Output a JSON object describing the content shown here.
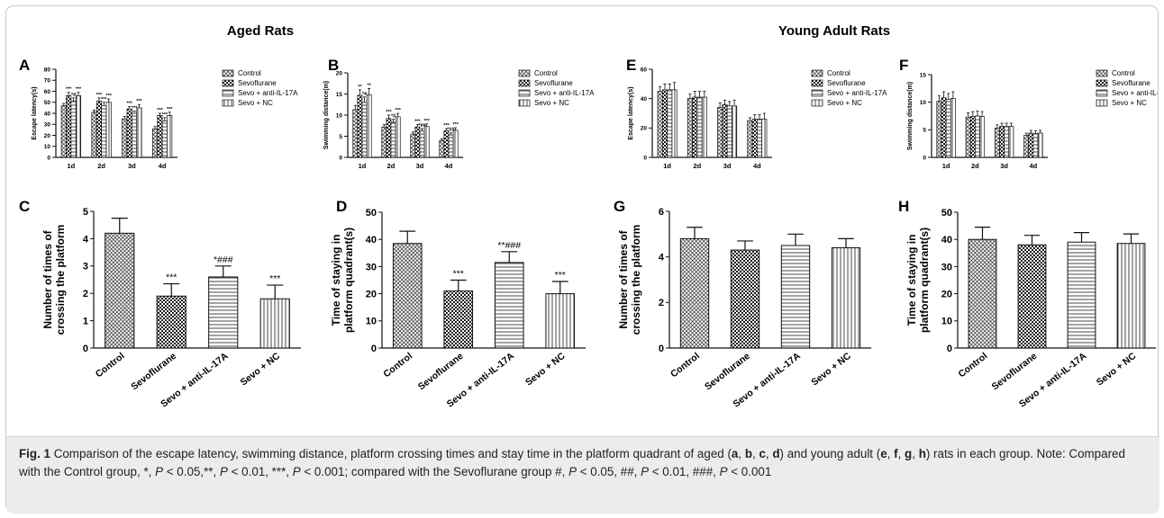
{
  "headers": {
    "aged": "Aged Rats",
    "young": "Young Adult Rats"
  },
  "legend": [
    "Control",
    "Sevoflurane",
    "Sevo + anti-IL-17A",
    "Sevo + NC"
  ],
  "colors": {
    "text": "#111111",
    "frame": "#c9c9c9",
    "caption_bg": "#ececec"
  },
  "chart_data": [
    {
      "panel": "A",
      "type": "bar",
      "ylabel": "Escape latency(s)",
      "categories": [
        "1d",
        "2d",
        "3d",
        "4d"
      ],
      "ylim": [
        0,
        80
      ],
      "yticks": [
        0,
        10,
        20,
        30,
        40,
        50,
        60,
        70,
        80
      ],
      "series": [
        {
          "name": "Control",
          "values": [
            47,
            41,
            35,
            26
          ],
          "errors": [
            2,
            2,
            2,
            2
          ]
        },
        {
          "name": "Sevoflurane",
          "values": [
            56,
            51,
            44,
            38
          ],
          "errors": [
            3,
            3,
            2,
            2
          ]
        },
        {
          "name": "Sevo + anti-IL-17A",
          "values": [
            51,
            47,
            40,
            33
          ],
          "errors": [
            3,
            3,
            2,
            3
          ]
        },
        {
          "name": "Sevo + NC",
          "values": [
            56,
            50,
            45,
            38
          ],
          "errors": [
            3,
            3,
            3,
            3
          ]
        }
      ],
      "annotations": [
        [
          "",
          "***",
          "*#",
          "***"
        ],
        [
          "",
          "***",
          "***",
          "***"
        ],
        [
          "",
          "***",
          "***",
          "***"
        ],
        [
          "",
          "***",
          "***",
          "***"
        ]
      ]
    },
    {
      "panel": "B",
      "type": "bar",
      "ylabel": "Swimming distance(m)",
      "categories": [
        "1d",
        "2d",
        "3d",
        "4d"
      ],
      "ylim": [
        0,
        20
      ],
      "yticks": [
        0,
        5,
        10,
        15,
        20
      ],
      "series": [
        {
          "name": "Control",
          "values": [
            11.3,
            7.2,
            5.5,
            4.0
          ],
          "errors": [
            1.0,
            0.6,
            0.5,
            0.4
          ]
        },
        {
          "name": "Sevoflurane",
          "values": [
            14.7,
            9.2,
            7.2,
            6.3
          ],
          "errors": [
            1.3,
            0.8,
            0.6,
            0.5
          ]
        },
        {
          "name": "Sevo + anti-IL-17A",
          "values": [
            13.0,
            8.3,
            6.2,
            5.3
          ],
          "errors": [
            1.3,
            0.7,
            0.6,
            0.5
          ]
        },
        {
          "name": "Sevo + NC",
          "values": [
            14.8,
            9.6,
            7.3,
            6.4
          ],
          "errors": [
            1.5,
            0.8,
            0.6,
            0.6
          ]
        }
      ],
      "annotations": [
        [
          "",
          "**",
          "*#",
          "**"
        ],
        [
          "",
          "***",
          "*#",
          "***"
        ],
        [
          "",
          "***",
          "*##",
          "***"
        ],
        [
          "",
          "***",
          "*##",
          "***"
        ]
      ]
    },
    {
      "panel": "E",
      "type": "bar",
      "ylabel": "Escape latency(s)",
      "categories": [
        "1d",
        "2d",
        "3d",
        "4d"
      ],
      "ylim": [
        0,
        60
      ],
      "yticks": [
        0,
        20,
        40,
        60
      ],
      "series": [
        {
          "name": "Control",
          "values": [
            45,
            40,
            34,
            25
          ],
          "errors": [
            3,
            3,
            3,
            2
          ]
        },
        {
          "name": "Sevoflurane",
          "values": [
            46,
            41,
            36,
            26
          ],
          "errors": [
            4,
            4,
            3,
            3
          ]
        },
        {
          "name": "Sevo + anti-IL-17A",
          "values": [
            46,
            41,
            35,
            26
          ],
          "errors": [
            4,
            4,
            3,
            3
          ]
        },
        {
          "name": "Sevo + NC",
          "values": [
            46,
            41,
            35,
            26
          ],
          "errors": [
            5,
            4,
            4,
            4
          ]
        }
      ],
      "annotations": []
    },
    {
      "panel": "F",
      "type": "bar",
      "ylabel": "Swimming distance(m)",
      "categories": [
        "1d",
        "2d",
        "3d",
        "4d"
      ],
      "ylim": [
        0,
        15
      ],
      "yticks": [
        0,
        5,
        10,
        15
      ],
      "series": [
        {
          "name": "Control",
          "values": [
            10.2,
            7.3,
            5.3,
            4.0
          ],
          "errors": [
            1.0,
            0.8,
            0.6,
            0.4
          ]
        },
        {
          "name": "Sevoflurane",
          "values": [
            10.8,
            7.4,
            5.6,
            4.4
          ],
          "errors": [
            1.1,
            0.9,
            0.6,
            0.5
          ]
        },
        {
          "name": "Sevo + anti-IL-17A",
          "values": [
            10.5,
            7.5,
            5.6,
            4.3
          ],
          "errors": [
            1.1,
            0.9,
            0.6,
            0.5
          ]
        },
        {
          "name": "Sevo + NC",
          "values": [
            10.7,
            7.4,
            5.6,
            4.4
          ],
          "errors": [
            1.2,
            0.9,
            0.6,
            0.5
          ]
        }
      ],
      "annotations": []
    },
    {
      "panel": "C",
      "type": "bar",
      "ylabel": "Number of times of crossing the platform",
      "categories": [
        "Control",
        "Sevoflurane",
        "Sevo + anti-IL-17A",
        "Sevo + NC"
      ],
      "ylim": [
        0,
        5
      ],
      "yticks": [
        0,
        1,
        2,
        3,
        4,
        5
      ],
      "values": [
        4.2,
        1.9,
        2.6,
        1.8
      ],
      "errors": [
        0.55,
        0.45,
        0.4,
        0.5
      ],
      "annotations": [
        "",
        "***",
        "*###",
        "***"
      ]
    },
    {
      "panel": "D",
      "type": "bar",
      "ylabel": "Time of staying in platform quadrant(s)",
      "categories": [
        "Control",
        "Sevoflurane",
        "Sevo + anti-IL-17A",
        "Sevo + NC"
      ],
      "ylim": [
        0,
        50
      ],
      "yticks": [
        0,
        10,
        20,
        30,
        40,
        50
      ],
      "values": [
        38.5,
        21,
        31.5,
        20
      ],
      "errors": [
        4.5,
        4,
        4,
        4.5
      ],
      "annotations": [
        "",
        "***",
        "**###",
        "***"
      ]
    },
    {
      "panel": "G",
      "type": "bar",
      "ylabel": "Number of times of crossing the platform",
      "categories": [
        "Control",
        "Sevoflurane",
        "Sevo + anti-IL-17A",
        "Sevo + NC"
      ],
      "ylim": [
        0,
        6
      ],
      "yticks": [
        0,
        2,
        4,
        6
      ],
      "values": [
        4.8,
        4.3,
        4.5,
        4.4
      ],
      "errors": [
        0.5,
        0.4,
        0.5,
        0.4
      ],
      "annotations": []
    },
    {
      "panel": "H",
      "type": "bar",
      "ylabel": "Time of staying in platform quadrant(s)",
      "categories": [
        "Control",
        "Sevoflurane",
        "Sevo + anti-IL-17A",
        "Sevo + NC"
      ],
      "ylim": [
        0,
        50
      ],
      "yticks": [
        0,
        10,
        20,
        30,
        40,
        50
      ],
      "values": [
        40,
        38,
        39,
        38.5
      ],
      "errors": [
        4.5,
        3.5,
        3.5,
        3.5
      ],
      "annotations": []
    }
  ],
  "caption": {
    "label": "Fig. 1",
    "parts": [
      " Comparison of the escape latency, swimming distance, platform crossing times and stay time in the platform quadrant of aged (",
      "a",
      ", ",
      "b",
      ", ",
      "c",
      ", ",
      "d",
      ") and young adult (",
      "e",
      ", ",
      "f",
      ", ",
      "g",
      ", ",
      "h",
      ") rats in each group. Note: Compared with the Control group, *, ",
      "P",
      " < 0.05,**, ",
      "P",
      " < 0.01, ***, ",
      "P",
      " < 0.001; compared with the Sevoflurane group #, ",
      "P",
      " < 0.05, ##, ",
      "P",
      " < 0.01, ###, ",
      "P",
      " < 0.001"
    ],
    "styles": [
      "",
      "b",
      "",
      "b",
      "",
      "b",
      "",
      "b",
      "",
      "b",
      "",
      "b",
      "",
      "b",
      "",
      "b",
      "",
      "i",
      "",
      "i",
      "",
      "i",
      "",
      "i",
      "",
      "i",
      "",
      "i",
      ""
    ]
  }
}
